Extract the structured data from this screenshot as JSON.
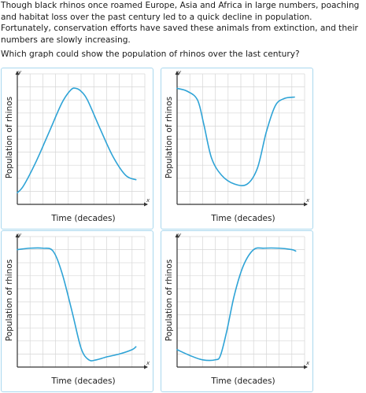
{
  "passage": "Though black rhinos once roamed Europe, Asia and Africa in large numbers, poaching and habitat loss over the past century led to a quick decline in population. Fortunately, conservation efforts have saved these animals from extinction, and their numbers are slowly increasing.",
  "question": "Which graph could show the population of rhinos over the last century?",
  "colors": {
    "curve": "#2ea3d6",
    "grid": "#d6d6d6",
    "axis": "#333333",
    "card_border": "#a9d8ee"
  },
  "options": [
    {
      "y_axis_label": "Population of rhinos",
      "x_axis_label": "Time (decades)",
      "y_letter": "y",
      "x_letter": "x",
      "chart_data": {
        "type": "line",
        "xlabel": "Time (decades)",
        "ylabel": "Population of rhinos",
        "xlim": [
          0,
          10
        ],
        "ylim": [
          0,
          9
        ],
        "grid": true,
        "x": [
          0,
          0.5,
          1.5,
          2.5,
          3.5,
          4.2,
          4.6,
          5.0,
          5.5,
          6.5,
          7.5,
          8.5,
          9.3
        ],
        "y": [
          0.8,
          1.3,
          3.0,
          5.0,
          7.0,
          7.9,
          8.0,
          7.8,
          7.2,
          5.2,
          3.3,
          2.0,
          1.7
        ]
      }
    },
    {
      "y_axis_label": "Population of rhinos",
      "x_axis_label": "Time (decades)",
      "y_letter": "y",
      "x_letter": "x",
      "chart_data": {
        "type": "line",
        "xlabel": "Time (decades)",
        "ylabel": "Population of rhinos",
        "xlim": [
          0,
          10
        ],
        "ylim": [
          0,
          9
        ],
        "grid": true,
        "x": [
          0,
          0.8,
          1.6,
          2.1,
          2.7,
          3.5,
          4.5,
          5.5,
          6.3,
          7.0,
          7.7,
          8.4,
          9.2
        ],
        "y": [
          8.0,
          7.8,
          7.2,
          5.5,
          3.2,
          2.0,
          1.4,
          1.4,
          2.5,
          5.0,
          6.8,
          7.3,
          7.4
        ]
      }
    },
    {
      "y_axis_label": "Population of rhinos",
      "x_axis_label": "Time (decades)",
      "y_letter": "y",
      "x_letter": "x",
      "chart_data": {
        "type": "line",
        "xlabel": "Time (decades)",
        "ylabel": "Population of rhinos",
        "xlim": [
          0,
          10
        ],
        "ylim": [
          0,
          9
        ],
        "grid": true,
        "x": [
          0,
          1.0,
          2.0,
          2.8,
          3.5,
          4.3,
          5.0,
          5.6,
          6.2,
          7.0,
          8.0,
          9.0,
          9.3
        ],
        "y": [
          8.1,
          8.2,
          8.2,
          8.0,
          6.5,
          3.8,
          1.3,
          0.5,
          0.5,
          0.7,
          0.9,
          1.2,
          1.4
        ]
      }
    },
    {
      "y_axis_label": "Population of rhinos",
      "x_axis_label": "Time (decades)",
      "y_letter": "y",
      "x_letter": "x",
      "chart_data": {
        "type": "line",
        "xlabel": "Time (decades)",
        "ylabel": "Population of rhinos",
        "xlim": [
          0,
          10
        ],
        "ylim": [
          0,
          9
        ],
        "grid": true,
        "x": [
          0,
          1.0,
          2.0,
          3.0,
          3.4,
          3.9,
          4.5,
          5.2,
          6.0,
          6.8,
          8.0,
          9.0,
          9.3
        ],
        "y": [
          1.2,
          0.8,
          0.5,
          0.5,
          0.8,
          2.5,
          5.0,
          7.0,
          8.1,
          8.2,
          8.2,
          8.1,
          8.0
        ]
      }
    }
  ]
}
